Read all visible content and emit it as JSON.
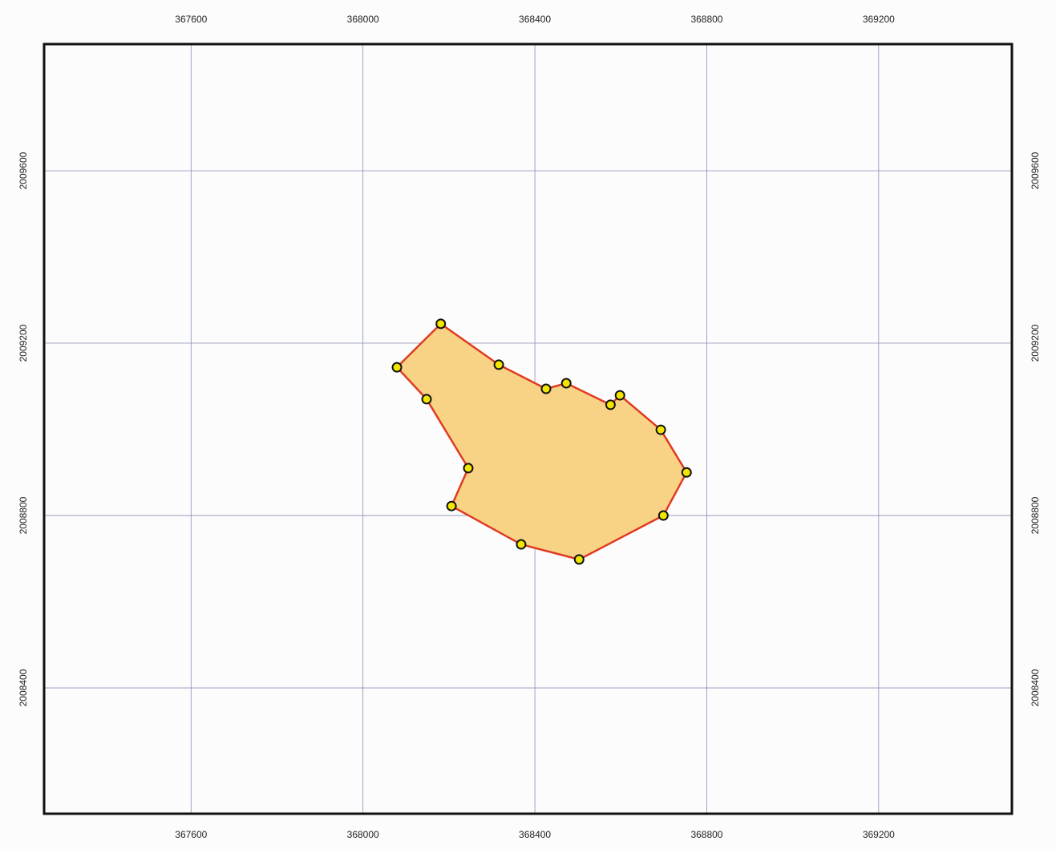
{
  "chart_data": {
    "type": "polygon",
    "x": [
      368181,
      368316,
      368426,
      368473,
      368576,
      368598,
      368693,
      368753,
      368699,
      368503,
      368368,
      368206,
      368245,
      368148,
      368079
    ],
    "y": [
      2009245,
      2009150,
      2009094,
      2009107,
      2009057,
      2009079,
      2008999,
      2008900,
      2008800,
      2008698,
      2008733,
      2008822,
      2008910,
      2009070,
      2009144
    ],
    "fill": "#f8d386",
    "stroke": "#e03a20",
    "marker_color": "#f2e600",
    "xlim": [
      367258,
      369510
    ],
    "ylim": [
      2008108,
      2009894
    ],
    "xticks": [
      367600,
      368000,
      368400,
      368800,
      369200
    ],
    "yticks": [
      2008400,
      2008800,
      2009200,
      2009600
    ],
    "grid": true
  }
}
